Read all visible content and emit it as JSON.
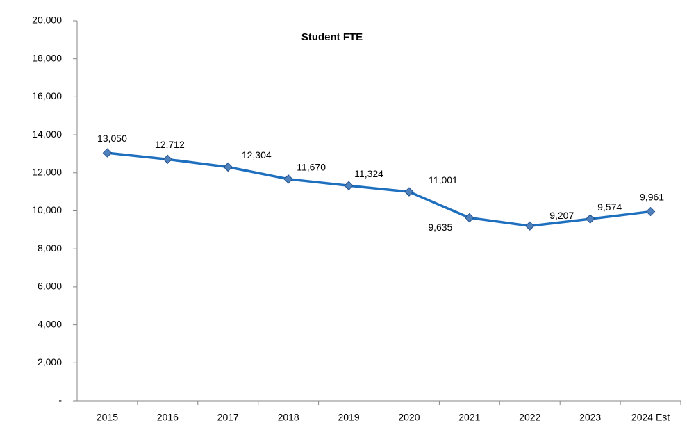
{
  "chart_data": {
    "type": "line",
    "title": "Student FTE",
    "categories": [
      "2015",
      "2016",
      "2017",
      "2018",
      "2019",
      "2020",
      "2021",
      "2022",
      "2023",
      "2024 Est"
    ],
    "series": [
      {
        "name": "Student FTE",
        "color": "#1f6fbf",
        "marker_color": "#4f81bd",
        "values": [
          13050,
          12712,
          12304,
          11670,
          11324,
          11001,
          9635,
          9207,
          9574,
          9961
        ],
        "value_labels": [
          "13,050",
          "12,712",
          "12,304",
          "11,670",
          "11,324",
          "11,001",
          "9,635",
          "9,207",
          "9,574",
          "9,961"
        ]
      }
    ],
    "ylim": [
      0,
      20000
    ],
    "yticks": [
      {
        "value": 0,
        "label": "-"
      },
      {
        "value": 2000,
        "label": "2,000"
      },
      {
        "value": 4000,
        "label": "4,000"
      },
      {
        "value": 6000,
        "label": "6,000"
      },
      {
        "value": 8000,
        "label": "8,000"
      },
      {
        "value": 10000,
        "label": "10,000"
      },
      {
        "value": 12000,
        "label": "12,000"
      },
      {
        "value": 14000,
        "label": "14,000"
      },
      {
        "value": 16000,
        "label": "16,000"
      },
      {
        "value": 18000,
        "label": "18,000"
      },
      {
        "value": 20000,
        "label": "20,000"
      }
    ],
    "grid": false
  }
}
